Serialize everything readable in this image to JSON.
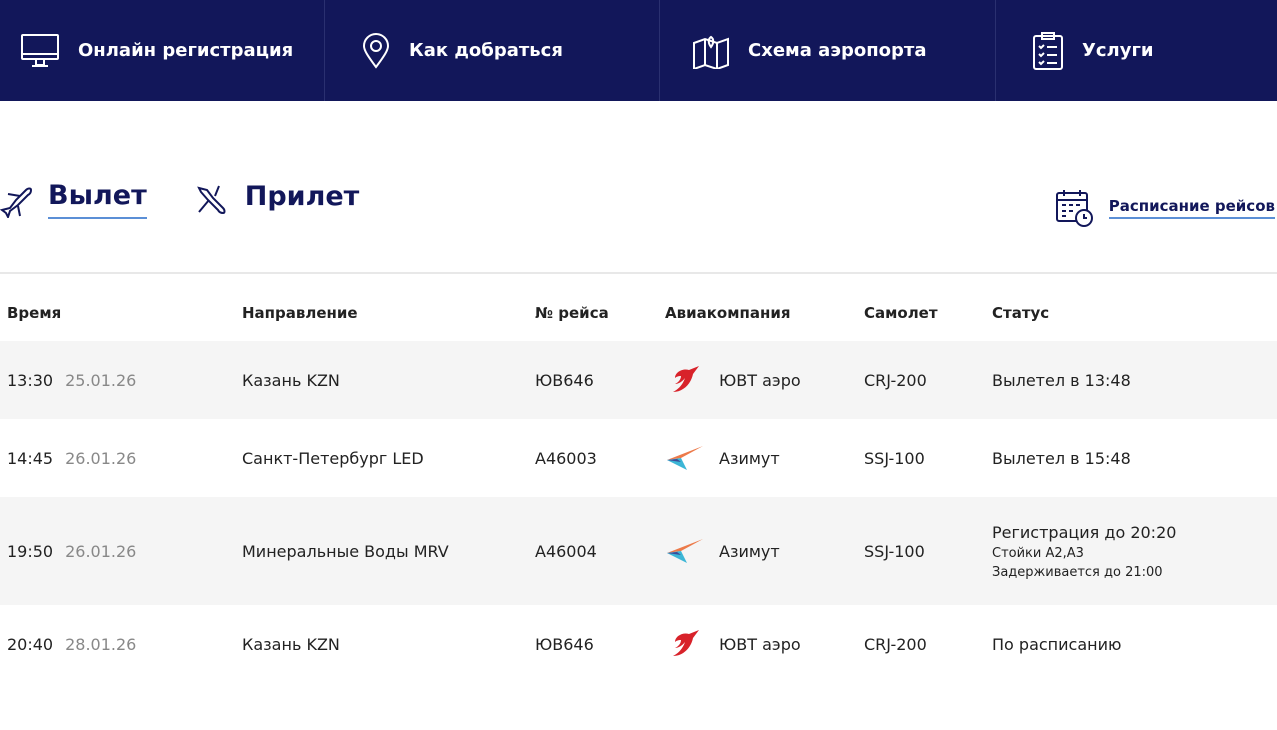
{
  "nav": [
    {
      "label": "Онлайн регистрация",
      "icon": "monitor-icon"
    },
    {
      "label": "Как добраться",
      "icon": "location-pin-icon"
    },
    {
      "label": "Схема аэропорта",
      "icon": "map-icon"
    },
    {
      "label": "Услуги",
      "icon": "clipboard-icon"
    }
  ],
  "tabs": [
    {
      "label": "Вылет",
      "active": true
    },
    {
      "label": "Прилет",
      "active": false
    }
  ],
  "schedule_link": "Расписание рейсов",
  "headers": [
    "Время",
    "Направление",
    "№ рейса",
    "Авиакомпания",
    "Самолет",
    "Статус"
  ],
  "rows": [
    {
      "time": "13:30",
      "date": "25.01.26",
      "destination": "Казань KZN",
      "flight": "ЮВ646",
      "airline": "ЮВТ аэро",
      "logo": "uvt",
      "aircraft": "CRJ-200",
      "status": "Вылетел в 13:48",
      "status_lines": []
    },
    {
      "time": "14:45",
      "date": "26.01.26",
      "destination": "Санкт-Петербург LED",
      "flight": "А46003",
      "airline": "Азимут",
      "logo": "azimut",
      "aircraft": "SSJ-100",
      "status": "Вылетел в 15:48",
      "status_lines": []
    },
    {
      "time": "19:50",
      "date": "26.01.26",
      "destination": "Минеральные Воды MRV",
      "flight": "А46004",
      "airline": "Азимут",
      "logo": "azimut",
      "aircraft": "SSJ-100",
      "status": "Регистрация до 20:20",
      "status_lines": [
        "Стойки А2,А3",
        "Задерживается до 21:00"
      ]
    },
    {
      "time": "20:40",
      "date": "28.01.26",
      "destination": "Казань KZN",
      "flight": "ЮВ646",
      "airline": "ЮВТ аэро",
      "logo": "uvt",
      "aircraft": "CRJ-200",
      "status": "По расписанию",
      "status_lines": []
    }
  ],
  "colors": {
    "nav_bg": "#12175a",
    "accent_underline": "#5b8fd6",
    "uvt_red": "#d8222a"
  }
}
